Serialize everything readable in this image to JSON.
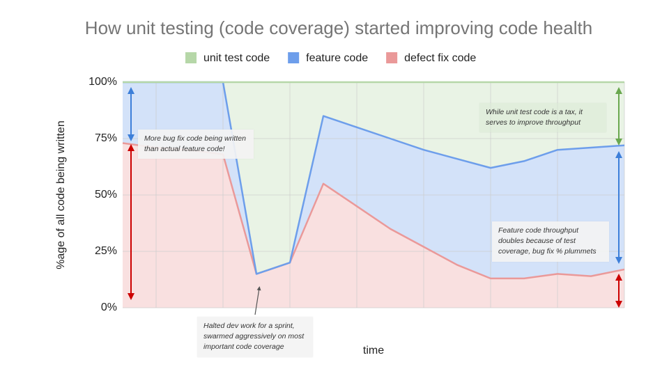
{
  "chart_data": {
    "type": "stacked_area",
    "title": "How unit testing (code coverage) started improving code health",
    "xlabel": "time",
    "ylabel": "%age of all code being written",
    "categories": [
      null,
      null,
      null,
      null,
      null,
      null,
      null,
      null,
      null,
      null,
      null,
      null,
      null,
      null,
      null,
      null
    ],
    "series": [
      {
        "name": "defect fix code",
        "color": "#ea9999",
        "line": "#ea9999",
        "values": [
          73,
          71,
          70,
          68,
          15,
          20,
          55,
          45,
          35,
          27,
          19,
          13,
          13,
          15,
          14,
          17
        ]
      },
      {
        "name": "feature code",
        "color": "#6d9eeb",
        "line": "#6d9eeb",
        "values": [
          27,
          29,
          30,
          32,
          0,
          0,
          30,
          35,
          40,
          43,
          47,
          49,
          52,
          55,
          57,
          55
        ]
      },
      {
        "name": "unit test code",
        "color": "#b6d7a8",
        "line": "#b6d7a8",
        "values": [
          0,
          0,
          0,
          0,
          85,
          80,
          15,
          20,
          25,
          30,
          34,
          38,
          35,
          30,
          29,
          28
        ]
      }
    ],
    "legend_order": [
      2,
      1,
      0
    ],
    "ylim": [
      0,
      100
    ],
    "yticks": [
      {
        "value": 0,
        "label": "0%"
      },
      {
        "value": 25,
        "label": "25%"
      },
      {
        "value": 50,
        "label": "50%"
      },
      {
        "value": 75,
        "label": "75%"
      },
      {
        "value": 100,
        "label": "100%"
      }
    ],
    "grid": true,
    "annotations": [
      "More bug fix code being written than actual feature code!",
      "While unit test code is a tax, it serves to improve throughput",
      "Feature code throughput doubles because of test coverage, bug fix % plummets",
      "Halted dev work for a sprint, swarmed aggressively on most important code coverage"
    ]
  }
}
